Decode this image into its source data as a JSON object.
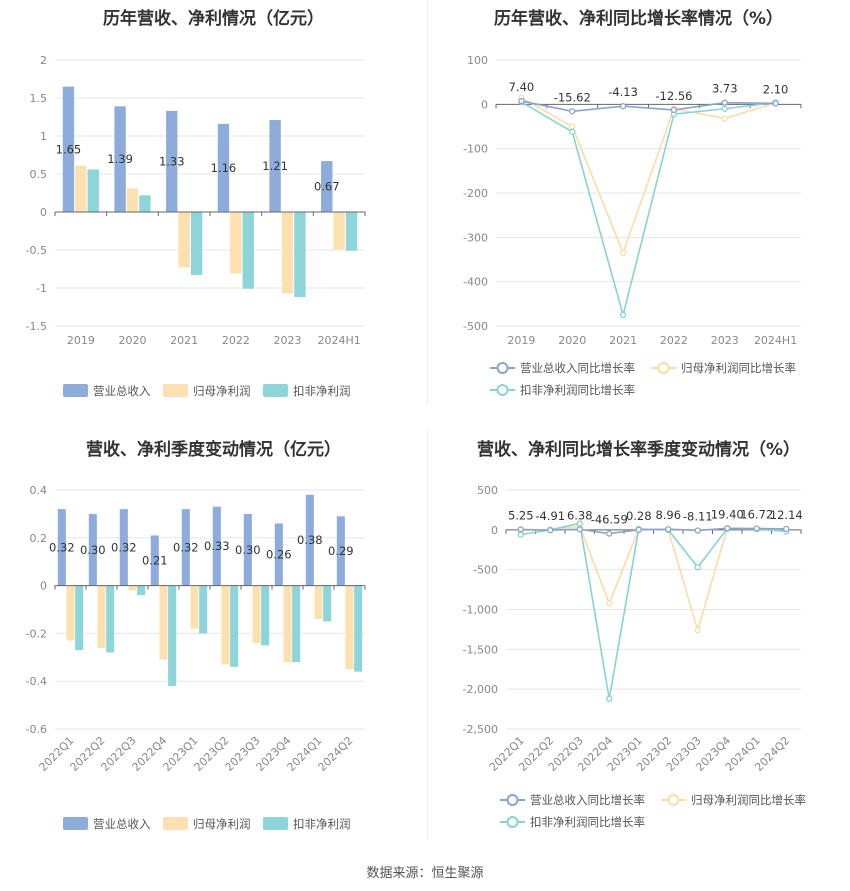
{
  "footer": "数据来源：恒生聚源",
  "colors": {
    "revenue": "#8eacdb",
    "parent_profit": "#fde0b0",
    "deducted_profit": "#8dd5d8",
    "revenue_line": "#8aa3cf",
    "parent_line": "#fcdca6",
    "deducted_line": "#86d3d6",
    "grid": "#e6e6e6",
    "axis": "#666666"
  },
  "chart_data": [
    {
      "id": "annual_bar",
      "type": "bar",
      "title": "历年营收、净利情况（亿元）",
      "categories": [
        "2019",
        "2020",
        "2021",
        "2022",
        "2023",
        "2024H1"
      ],
      "series": [
        {
          "name": "营业总收入",
          "values": [
            1.65,
            1.39,
            1.33,
            1.16,
            1.21,
            0.67
          ],
          "labels": [
            "1.65",
            "1.39",
            "1.33",
            "1.16",
            "1.21",
            "0.67"
          ]
        },
        {
          "name": "归母净利润",
          "values": [
            0.61,
            0.31,
            -0.73,
            -0.81,
            -1.07,
            -0.49
          ]
        },
        {
          "name": "扣非净利润",
          "values": [
            0.56,
            0.22,
            -0.83,
            -1.01,
            -1.12,
            -0.51
          ]
        }
      ],
      "yticks": [
        "2",
        "1.5",
        "1",
        "0.5",
        "0",
        "-0.5",
        "-1",
        "-1.5"
      ],
      "ylim": [
        -1.5,
        2
      ],
      "legend": "bottom"
    },
    {
      "id": "annual_line",
      "type": "line",
      "title": "历年营收、净利同比增长率情况（%）",
      "categories": [
        "2019",
        "2020",
        "2021",
        "2022",
        "2023",
        "2024H1"
      ],
      "series": [
        {
          "name": "营业总收入同比增长率",
          "values": [
            7.4,
            -15.62,
            -4.13,
            -12.56,
            3.73,
            2.1
          ],
          "labels": [
            "7.40",
            "-15.62",
            "-4.13",
            "-12.56",
            "3.73",
            "2.10"
          ]
        },
        {
          "name": "归母净利润同比增长率",
          "values": [
            15,
            -50,
            -335,
            -10,
            -32,
            3
          ]
        },
        {
          "name": "扣非净利润同比增长率",
          "values": [
            5,
            -62,
            -475,
            -22,
            -10,
            4
          ]
        }
      ],
      "yticks": [
        "100",
        "0",
        "-100",
        "-200",
        "-300",
        "-400",
        "-500"
      ],
      "ylim": [
        -500,
        100
      ],
      "legend": "bottom"
    },
    {
      "id": "quarter_bar",
      "type": "bar",
      "title": "营收、净利季度变动情况（亿元）",
      "categories": [
        "2022Q1",
        "2022Q2",
        "2022Q3",
        "2022Q4",
        "2023Q1",
        "2023Q2",
        "2023Q3",
        "2023Q4",
        "2024Q1",
        "2024Q2"
      ],
      "series": [
        {
          "name": "营业总收入",
          "values": [
            0.32,
            0.3,
            0.32,
            0.21,
            0.32,
            0.33,
            0.3,
            0.26,
            0.38,
            0.29
          ],
          "labels": [
            "0.32",
            "0.30",
            "0.32",
            "0.21",
            "0.32",
            "0.33",
            "0.30",
            "0.26",
            "0.38",
            "0.29"
          ]
        },
        {
          "name": "归母净利润",
          "values": [
            -0.23,
            -0.26,
            -0.02,
            -0.31,
            -0.18,
            -0.33,
            -0.24,
            -0.32,
            -0.14,
            -0.35
          ]
        },
        {
          "name": "扣非净利润",
          "values": [
            -0.27,
            -0.28,
            -0.04,
            -0.42,
            -0.2,
            -0.34,
            -0.25,
            -0.32,
            -0.15,
            -0.36
          ]
        }
      ],
      "yticks": [
        "0.4",
        "0.2",
        "0",
        "-0.2",
        "-0.4",
        "-0.6"
      ],
      "ylim": [
        -0.6,
        0.4
      ],
      "legend": "bottom"
    },
    {
      "id": "quarter_line",
      "type": "line",
      "title": "营收、净利同比增长率季度变动情况（%）",
      "categories": [
        "2022Q1",
        "2022Q2",
        "2022Q3",
        "2022Q4",
        "2023Q1",
        "2023Q2",
        "2023Q3",
        "2023Q4",
        "2024Q1",
        "2024Q2"
      ],
      "series": [
        {
          "name": "营业总收入同比增长率",
          "values": [
            5.25,
            -4.91,
            6.38,
            -46.59,
            0.28,
            8.96,
            -8.11,
            19.4,
            16.72,
            12.14
          ],
          "labels": [
            "5.25",
            "-4.91",
            "6.38",
            "-46.59",
            "0.28",
            "8.96",
            "-8.11",
            "19.40",
            "16.72",
            "12.14"
          ]
        },
        {
          "name": "归母净利润同比增长率",
          "values": [
            -10,
            5,
            40,
            -920,
            5,
            -5,
            -1260,
            20,
            15,
            -15
          ]
        },
        {
          "name": "扣非净利润同比增长率",
          "values": [
            -60,
            0,
            80,
            -2120,
            10,
            0,
            -470,
            15,
            10,
            -20
          ]
        }
      ],
      "yticks": [
        "500",
        "0",
        "-500",
        "-1,000",
        "-1,500",
        "-2,000",
        "-2,500"
      ],
      "ylim": [
        -2500,
        500
      ],
      "legend": "bottom"
    }
  ]
}
